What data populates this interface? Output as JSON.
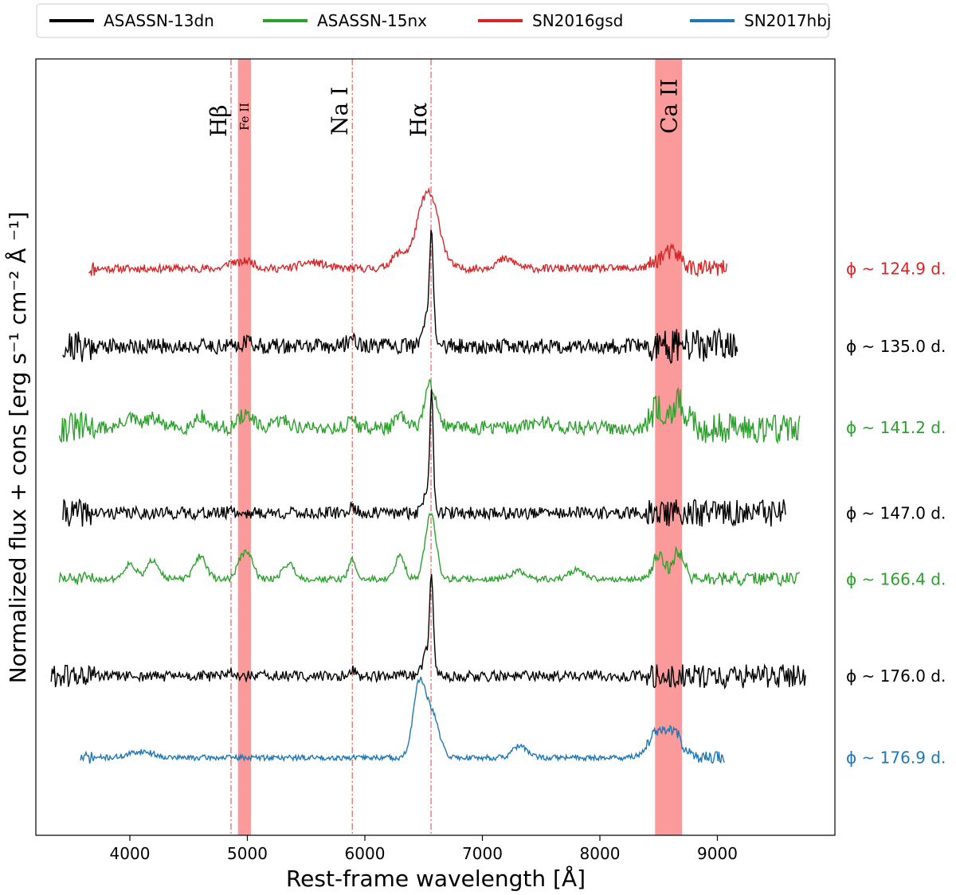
{
  "chart_data": {
    "type": "line",
    "xlabel": "Rest-frame wavelength [Å]",
    "ylabel": "Normalized flux + cons [erg s⁻¹ cm⁻² Å ⁻¹]",
    "xlim": [
      3200,
      10000
    ],
    "ylim": [
      0,
      10
    ],
    "xticks": [
      4000,
      5000,
      6000,
      7000,
      8000,
      9000
    ],
    "xtick_labels": [
      "4000",
      "5000",
      "6000",
      "7000",
      "8000",
      "9000"
    ],
    "grid": false,
    "legend": [
      {
        "name": "ASASSN-13dn",
        "color": "#000000"
      },
      {
        "name": "ASASSN-15nx",
        "color": "#2ca02c"
      },
      {
        "name": "SN2016gsd",
        "color": "#d62728"
      },
      {
        "name": "SN2017hbj",
        "color": "#1f77b4"
      }
    ],
    "lines": [
      {
        "label": "Hβ",
        "wavelength": 4861
      },
      {
        "label": "Na I",
        "wavelength": 5893
      },
      {
        "label": "Hα",
        "wavelength": 6563
      }
    ],
    "bands": [
      {
        "label": "Fe II",
        "range": [
          4920,
          5030
        ]
      },
      {
        "label": "Ca II",
        "range": [
          8470,
          8700
        ]
      }
    ],
    "series": [
      {
        "name": "SN2016gsd",
        "phase_label": "ϕ ~  124.9 d.",
        "color": "#d62728",
        "offset": 7.3,
        "range": [
          3650,
          9080
        ],
        "noise": 0.05,
        "seed": 11,
        "features": [
          [
            6560,
            0.85,
            80
          ],
          [
            6470,
            0.3,
            60
          ],
          [
            6300,
            0.2,
            70
          ],
          [
            4861,
            0.08,
            40
          ],
          [
            5000,
            0.1,
            60
          ],
          [
            5550,
            0.08,
            100
          ],
          [
            7200,
            0.12,
            80
          ],
          [
            8550,
            0.15,
            80
          ],
          [
            8650,
            0.12,
            60
          ]
        ]
      },
      {
        "name": "ASASSN-13dn",
        "phase_label": "ϕ ~  135.0 d.",
        "color": "#000000",
        "offset": 6.3,
        "range": [
          3430,
          9170
        ],
        "noise": 0.1,
        "seed": 21,
        "features": [
          [
            6568,
            1.2,
            15
          ],
          [
            6540,
            0.4,
            40
          ],
          [
            5893,
            0.1,
            40
          ],
          [
            5000,
            0.06,
            50
          ]
        ]
      },
      {
        "name": "ASASSN-15nx",
        "phase_label": "ϕ ~  141.2 d.",
        "color": "#2ca02c",
        "offset": 5.25,
        "range": [
          3400,
          9700
        ],
        "noise": 0.09,
        "seed": 31,
        "features": [
          [
            6560,
            0.55,
            50
          ],
          [
            4000,
            0.12,
            60
          ],
          [
            4200,
            0.12,
            60
          ],
          [
            4600,
            0.15,
            50
          ],
          [
            4950,
            0.12,
            40
          ],
          [
            5020,
            0.12,
            40
          ],
          [
            5300,
            0.1,
            60
          ],
          [
            5893,
            0.12,
            30
          ],
          [
            6300,
            0.15,
            40
          ],
          [
            7500,
            0.08,
            80
          ],
          [
            8500,
            0.25,
            60
          ],
          [
            8670,
            0.3,
            60
          ]
        ]
      },
      {
        "name": "ASASSN-13dn",
        "phase_label": "ϕ ~  147.0 d.",
        "color": "#000000",
        "offset": 4.15,
        "range": [
          3430,
          9580
        ],
        "noise": 0.08,
        "seed": 41,
        "features": [
          [
            6568,
            1.4,
            14
          ],
          [
            6540,
            0.3,
            40
          ],
          [
            4861,
            0.1,
            15
          ],
          [
            5893,
            0.08,
            30
          ]
        ]
      },
      {
        "name": "ASASSN-15nx",
        "phase_label": "ϕ ~  166.4 d.",
        "color": "#2ca02c",
        "offset": 3.3,
        "range": [
          3400,
          9700
        ],
        "noise": 0.04,
        "seed": 51,
        "features": [
          [
            6560,
            0.85,
            45
          ],
          [
            4000,
            0.2,
            50
          ],
          [
            4200,
            0.25,
            50
          ],
          [
            4600,
            0.3,
            50
          ],
          [
            4950,
            0.25,
            40
          ],
          [
            5020,
            0.25,
            40
          ],
          [
            5350,
            0.2,
            50
          ],
          [
            5893,
            0.25,
            30
          ],
          [
            6300,
            0.3,
            40
          ],
          [
            7300,
            0.1,
            60
          ],
          [
            7800,
            0.12,
            60
          ],
          [
            8500,
            0.3,
            50
          ],
          [
            8670,
            0.35,
            50
          ]
        ]
      },
      {
        "name": "ASASSN-13dn",
        "phase_label": "ϕ ~  176.0 d.",
        "color": "#000000",
        "offset": 2.05,
        "range": [
          3330,
          9750
        ],
        "noise": 0.07,
        "seed": 61,
        "features": [
          [
            6568,
            1.1,
            14
          ],
          [
            6540,
            0.35,
            40
          ],
          [
            4861,
            0.08,
            15
          ],
          [
            5893,
            0.08,
            30
          ]
        ]
      },
      {
        "name": "SN2017hbj",
        "phase_label": "ϕ ~  176.9 d.",
        "color": "#1f77b4",
        "offset": 1.0,
        "range": [
          3580,
          9060
        ],
        "noise": 0.035,
        "seed": 71,
        "features": [
          [
            6460,
            0.9,
            50
          ],
          [
            6570,
            0.55,
            60
          ],
          [
            7320,
            0.15,
            60
          ],
          [
            8500,
            0.35,
            80
          ],
          [
            8650,
            0.25,
            60
          ],
          [
            4100,
            0.08,
            100
          ]
        ]
      }
    ]
  }
}
